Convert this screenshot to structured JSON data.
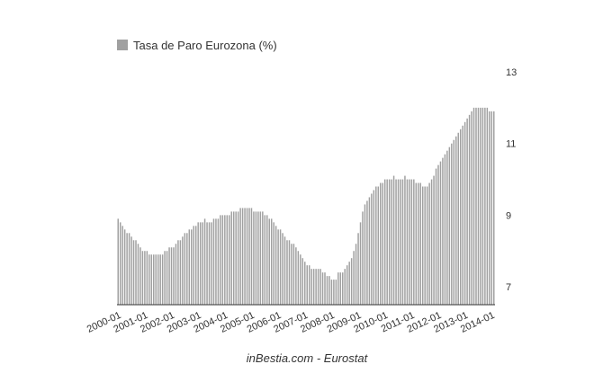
{
  "chart_data": {
    "type": "bar",
    "categories": [
      "2000-01",
      null,
      null,
      null,
      null,
      null,
      null,
      null,
      null,
      null,
      null,
      null,
      "2001-01",
      null,
      null,
      null,
      null,
      null,
      null,
      null,
      null,
      null,
      null,
      null,
      "2002-01",
      null,
      null,
      null,
      null,
      null,
      null,
      null,
      null,
      null,
      null,
      null,
      "2003-01",
      null,
      null,
      null,
      null,
      null,
      null,
      null,
      null,
      null,
      null,
      null,
      "2004-01",
      null,
      null,
      null,
      null,
      null,
      null,
      null,
      null,
      null,
      null,
      null,
      "2005-01",
      null,
      null,
      null,
      null,
      null,
      null,
      null,
      null,
      null,
      null,
      null,
      "2006-01",
      null,
      null,
      null,
      null,
      null,
      null,
      null,
      null,
      null,
      null,
      null,
      "2007-01",
      null,
      null,
      null,
      null,
      null,
      null,
      null,
      null,
      null,
      null,
      null,
      "2008-01",
      null,
      null,
      null,
      null,
      null,
      null,
      null,
      null,
      null,
      null,
      null,
      "2009-01",
      null,
      null,
      null,
      null,
      null,
      null,
      null,
      null,
      null,
      null,
      null,
      "2010-01",
      null,
      null,
      null,
      null,
      null,
      null,
      null,
      null,
      null,
      null,
      null,
      "2011-01",
      null,
      null,
      null,
      null,
      null,
      null,
      null,
      null,
      null,
      null,
      null,
      "2012-01",
      null,
      null,
      null,
      null,
      null,
      null,
      null,
      null,
      null,
      null,
      null,
      "2013-01",
      null,
      null,
      null,
      null,
      null,
      null,
      null,
      null,
      null,
      null,
      null,
      "2014-01",
      null
    ],
    "series": [
      {
        "name": "Tasa de Paro Eurozona (%)",
        "color": "#a0a0a0",
        "values": [
          8.9,
          8.8,
          8.7,
          8.6,
          8.5,
          8.5,
          8.4,
          8.3,
          8.3,
          8.2,
          8.1,
          8.0,
          8.0,
          8.0,
          7.9,
          7.9,
          7.9,
          7.9,
          7.9,
          7.9,
          7.9,
          8.0,
          8.0,
          8.1,
          8.1,
          8.1,
          8.2,
          8.3,
          8.3,
          8.4,
          8.5,
          8.5,
          8.6,
          8.6,
          8.7,
          8.7,
          8.8,
          8.8,
          8.8,
          8.9,
          8.8,
          8.8,
          8.8,
          8.9,
          8.9,
          8.9,
          9.0,
          9.0,
          9.0,
          9.0,
          9.0,
          9.1,
          9.1,
          9.1,
          9.1,
          9.2,
          9.2,
          9.2,
          9.2,
          9.2,
          9.2,
          9.1,
          9.1,
          9.1,
          9.1,
          9.1,
          9.0,
          9.0,
          8.9,
          8.9,
          8.8,
          8.7,
          8.6,
          8.6,
          8.5,
          8.4,
          8.3,
          8.3,
          8.2,
          8.2,
          8.1,
          8.0,
          7.9,
          7.8,
          7.7,
          7.6,
          7.6,
          7.5,
          7.5,
          7.5,
          7.5,
          7.5,
          7.4,
          7.4,
          7.3,
          7.3,
          7.2,
          7.2,
          7.2,
          7.4,
          7.4,
          7.4,
          7.5,
          7.6,
          7.7,
          7.8,
          8.0,
          8.2,
          8.5,
          8.8,
          9.1,
          9.3,
          9.4,
          9.5,
          9.6,
          9.7,
          9.8,
          9.8,
          9.9,
          9.9,
          10.0,
          10.0,
          10.0,
          10.0,
          10.1,
          10.0,
          10.0,
          10.0,
          10.0,
          10.1,
          10.0,
          10.0,
          10.0,
          10.0,
          9.9,
          9.9,
          9.9,
          9.8,
          9.8,
          9.8,
          9.9,
          10.0,
          10.1,
          10.3,
          10.4,
          10.5,
          10.6,
          10.7,
          10.8,
          10.9,
          11.0,
          11.1,
          11.2,
          11.3,
          11.4,
          11.5,
          11.6,
          11.7,
          11.8,
          11.9,
          12.0,
          12.0,
          12.0,
          12.0,
          12.0,
          12.0,
          12.0,
          11.9,
          11.9,
          11.9
        ]
      }
    ],
    "ylim": [
      6.5,
      13
    ],
    "yticks": [
      7,
      9,
      11,
      13
    ],
    "grid": false,
    "legend": "top-left",
    "source": "inBestia.com - Eurostat"
  }
}
